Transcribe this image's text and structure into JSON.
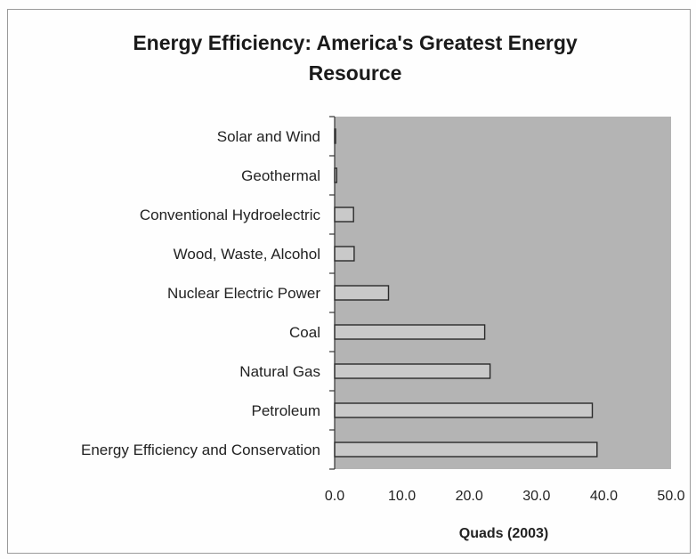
{
  "chart_data": {
    "type": "bar",
    "orientation": "horizontal",
    "title_line1": "Energy Efficiency:  America's Greatest Energy",
    "title_line2": "Resource",
    "xlabel": "Quads (2003)",
    "ylabel": "",
    "xlim": [
      0,
      50
    ],
    "xticks": [
      "0.0",
      "10.0",
      "20.0",
      "30.0",
      "40.0",
      "50.0"
    ],
    "categories": [
      "Solar and Wind",
      "Geothermal",
      "Conventional Hydroelectric",
      "Wood, Waste, Alcohol",
      "Nuclear Electric Power",
      "Coal",
      "Natural Gas",
      "Petroleum",
      "Energy Efficiency and Conservation"
    ],
    "values": [
      0.1,
      0.3,
      2.8,
      2.9,
      8.0,
      22.3,
      23.1,
      38.3,
      39.0
    ],
    "grid": false,
    "plot_background": "#b4b4b4",
    "bar_color": "#c9c9c9",
    "bar_edge_color": "#2a2a2a"
  }
}
